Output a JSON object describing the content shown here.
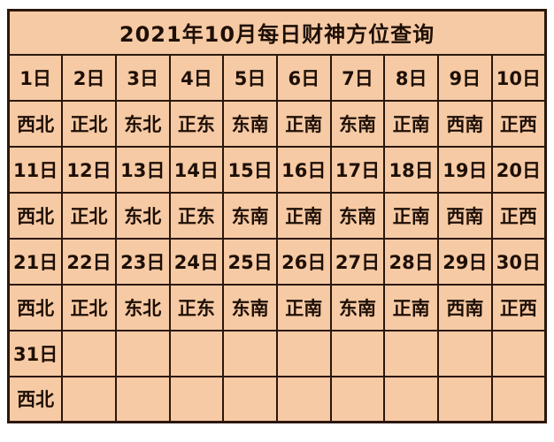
{
  "title": "2021年10月每日财神方位查询",
  "table": {
    "columns": 10,
    "rows": [
      {
        "type": "date",
        "cells": [
          "1日",
          "2日",
          "3日",
          "4日",
          "5日",
          "6日",
          "7日",
          "8日",
          "9日",
          "10日"
        ]
      },
      {
        "type": "direction",
        "cells": [
          "西北",
          "正北",
          "东北",
          "正东",
          "东南",
          "正南",
          "东南",
          "正南",
          "西南",
          "正西"
        ]
      },
      {
        "type": "date",
        "cells": [
          "11日",
          "12日",
          "13日",
          "14日",
          "15日",
          "16日",
          "17日",
          "18日",
          "19日",
          "20日"
        ]
      },
      {
        "type": "direction",
        "cells": [
          "西北",
          "正北",
          "东北",
          "正东",
          "东南",
          "正南",
          "东南",
          "正南",
          "西南",
          "正西"
        ]
      },
      {
        "type": "date",
        "cells": [
          "21日",
          "22日",
          "23日",
          "24日",
          "25日",
          "26日",
          "27日",
          "28日",
          "29日",
          "30日"
        ]
      },
      {
        "type": "direction",
        "cells": [
          "西北",
          "正北",
          "东北",
          "正东",
          "东南",
          "正南",
          "东南",
          "正南",
          "西南",
          "正西"
        ]
      },
      {
        "type": "date",
        "cells": [
          "31日",
          "",
          "",
          "",
          "",
          "",
          "",
          "",
          "",
          ""
        ]
      },
      {
        "type": "direction",
        "cells": [
          "西北",
          "",
          "",
          "",
          "",
          "",
          "",
          "",
          "",
          ""
        ]
      }
    ]
  },
  "colors": {
    "page_background": "#ffffff",
    "cell_background": "#f6caa4",
    "border": "#2b170c",
    "text": "#1e0f06"
  }
}
